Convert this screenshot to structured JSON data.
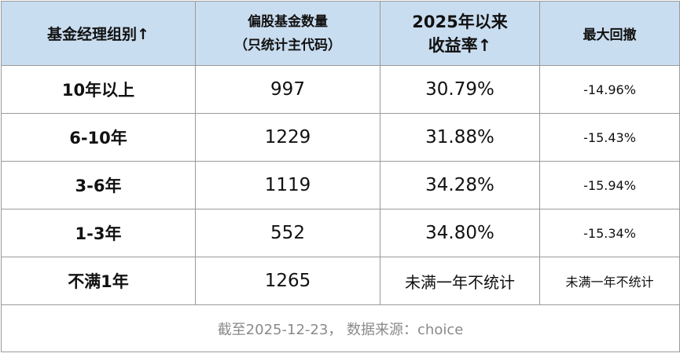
{
  "table": {
    "header": [
      [
        "基金经理组别↑"
      ],
      [
        "偏股基金数量",
        "（只统计主代码）"
      ],
      [
        "2025年以来",
        "收益率↑"
      ],
      [
        "最大回撤"
      ]
    ],
    "rows": [
      [
        "10年以上",
        "997",
        "30.79%",
        "-14.96%"
      ],
      [
        "6-10年",
        "1229",
        "31.88%",
        "-15.43%"
      ],
      [
        "3-6年",
        "1119",
        "34.28%",
        "-15.94%"
      ],
      [
        "1-3年",
        "552",
        "34.80%",
        "-15.34%"
      ],
      [
        "不满1年",
        "1265",
        "未满一年不统计",
        "未满一年不统计"
      ]
    ],
    "footer": "截至2025-12-23， 数据来源：choice"
  }
}
